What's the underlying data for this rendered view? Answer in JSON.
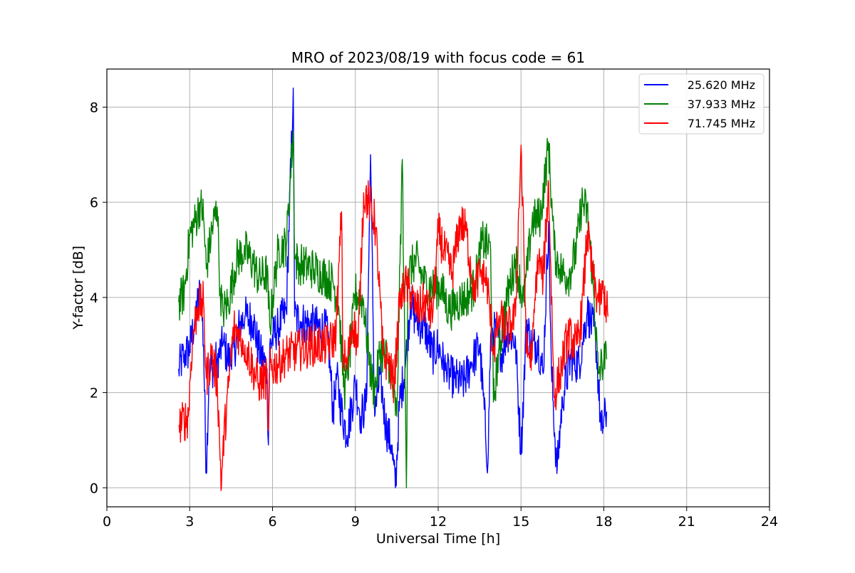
{
  "chart_data": {
    "type": "line",
    "title": "MRO of 2023/08/19 with focus code = 61",
    "xlabel": "Universal Time [h]",
    "ylabel": "Y-factor [dB]",
    "xlim": [
      0,
      24
    ],
    "ylim": [
      -0.4,
      8.8
    ],
    "xticks": [
      0,
      3,
      6,
      9,
      12,
      15,
      18,
      21,
      24
    ],
    "yticks": [
      0,
      2,
      4,
      6,
      8
    ],
    "grid": true,
    "legend_position": "top-right",
    "series": [
      {
        "name": "25.620 MHz",
        "color": "#0000ff",
        "x": [
          2.6,
          2.8,
          3.0,
          3.2,
          3.4,
          3.5,
          3.6,
          3.7,
          4.0,
          4.2,
          4.5,
          4.8,
          5.0,
          5.3,
          5.5,
          5.8,
          5.85,
          5.9,
          6.2,
          6.5,
          6.75,
          6.8,
          7.0,
          7.5,
          8.0,
          8.2,
          8.3,
          8.5,
          8.7,
          9.0,
          9.2,
          9.4,
          9.55,
          9.7,
          9.9,
          10.1,
          10.3,
          10.45,
          10.6,
          10.8,
          11.0,
          11.2,
          11.5,
          11.8,
          12.0,
          12.3,
          12.6,
          12.9,
          13.2,
          13.5,
          13.8,
          13.9,
          14.1,
          14.3,
          14.5,
          14.8,
          15.0,
          15.2,
          15.4,
          15.6,
          15.8,
          16.0,
          16.1,
          16.3,
          16.5,
          16.8,
          17.1,
          17.4,
          17.7,
          17.9,
          18.1
        ],
        "y": [
          2.5,
          2.8,
          2.9,
          3.6,
          4.2,
          3.0,
          0.3,
          2.4,
          2.7,
          3.0,
          2.6,
          3.4,
          3.6,
          3.5,
          2.9,
          2.5,
          0.9,
          3.0,
          3.4,
          3.7,
          8.4,
          3.6,
          3.5,
          3.4,
          3.3,
          1.5,
          2.4,
          1.6,
          1.1,
          2.2,
          1.5,
          1.8,
          7.0,
          1.5,
          2.4,
          1.3,
          0.9,
          0.0,
          1.8,
          2.5,
          3.9,
          3.5,
          3.4,
          2.8,
          3.0,
          2.4,
          2.3,
          2.2,
          2.6,
          3.0,
          0.5,
          3.2,
          3.3,
          2.8,
          3.3,
          3.1,
          0.7,
          3.5,
          2.9,
          3.1,
          2.4,
          5.6,
          2.5,
          0.3,
          1.9,
          2.7,
          2.6,
          3.7,
          3.2,
          1.2,
          1.6
        ]
      },
      {
        "name": "37.933 MHz",
        "color": "#008000",
        "x": [
          2.6,
          2.8,
          3.0,
          3.2,
          3.4,
          3.5,
          3.6,
          3.8,
          4.0,
          4.1,
          4.2,
          4.4,
          4.7,
          5.0,
          5.3,
          5.5,
          5.8,
          5.9,
          6.2,
          6.5,
          6.75,
          6.8,
          7.0,
          7.5,
          8.0,
          8.2,
          8.4,
          8.6,
          8.8,
          9.0,
          9.3,
          9.5,
          9.7,
          9.9,
          10.2,
          10.5,
          10.7,
          10.85,
          10.9,
          11.2,
          11.5,
          11.8,
          12.1,
          12.4,
          12.7,
          13.0,
          13.3,
          13.6,
          13.9,
          14.0,
          14.2,
          14.5,
          14.8,
          15.1,
          15.4,
          15.7,
          16.0,
          16.2,
          16.4,
          16.7,
          17.0,
          17.2,
          17.4,
          17.6,
          17.8,
          18.0,
          18.1
        ],
        "y": [
          3.9,
          4.1,
          5.3,
          5.6,
          6.0,
          5.7,
          4.6,
          5.4,
          5.9,
          4.2,
          3.7,
          3.9,
          4.8,
          5.0,
          4.7,
          4.4,
          4.5,
          3.4,
          5.0,
          5.1,
          7.5,
          4.8,
          4.7,
          4.6,
          4.4,
          4.3,
          3.8,
          2.0,
          2.8,
          4.1,
          3.9,
          2.6,
          2.0,
          2.9,
          2.7,
          1.5,
          6.9,
          0.0,
          4.5,
          4.8,
          4.3,
          4.2,
          4.2,
          3.7,
          3.9,
          4.0,
          4.2,
          5.2,
          5.0,
          1.8,
          2.9,
          4.0,
          4.8,
          3.9,
          5.6,
          5.7,
          7.2,
          5.0,
          4.6,
          4.4,
          5.0,
          6.0,
          5.8,
          4.4,
          2.4,
          2.7,
          2.7
        ]
      },
      {
        "name": "71.745 MHz",
        "color": "#ff0000",
        "x": [
          2.6,
          2.8,
          2.95,
          3.1,
          3.3,
          3.5,
          3.6,
          3.8,
          4.0,
          4.15,
          4.2,
          4.4,
          4.6,
          4.8,
          5.0,
          5.3,
          5.5,
          5.8,
          5.85,
          5.9,
          6.2,
          6.5,
          7.0,
          7.5,
          8.0,
          8.3,
          8.5,
          8.55,
          8.7,
          8.9,
          9.1,
          9.3,
          9.5,
          9.7,
          9.8,
          10.0,
          10.2,
          10.4,
          10.6,
          10.8,
          11.0,
          11.2,
          11.5,
          11.8,
          12.0,
          12.2,
          12.5,
          12.8,
          13.0,
          13.3,
          13.6,
          13.8,
          14.0,
          14.2,
          14.5,
          14.8,
          15.0,
          15.2,
          15.4,
          15.6,
          15.8,
          16.0,
          16.2,
          16.4,
          16.7,
          17.0,
          17.2,
          17.4,
          17.6,
          17.8,
          18.0,
          18.15
        ],
        "y": [
          1.3,
          1.4,
          1.5,
          3.2,
          3.8,
          3.9,
          2.3,
          2.8,
          2.2,
          0.0,
          0.8,
          2.1,
          3.4,
          3.2,
          3.0,
          2.5,
          2.2,
          2.3,
          1.2,
          2.5,
          2.6,
          2.8,
          2.9,
          3.0,
          3.0,
          3.2,
          5.8,
          2.8,
          2.6,
          3.5,
          3.0,
          6.2,
          6.0,
          5.6,
          4.9,
          2.8,
          2.6,
          2.2,
          3.8,
          4.3,
          4.1,
          3.7,
          3.9,
          3.6,
          5.4,
          5.0,
          4.5,
          5.6,
          5.4,
          4.2,
          4.6,
          4.2,
          2.8,
          3.6,
          3.3,
          3.6,
          7.2,
          2.9,
          2.7,
          4.9,
          4.4,
          6.4,
          1.9,
          2.4,
          3.2,
          3.0,
          3.6,
          5.4,
          4.4,
          3.9,
          4.1,
          3.6
        ]
      }
    ]
  }
}
